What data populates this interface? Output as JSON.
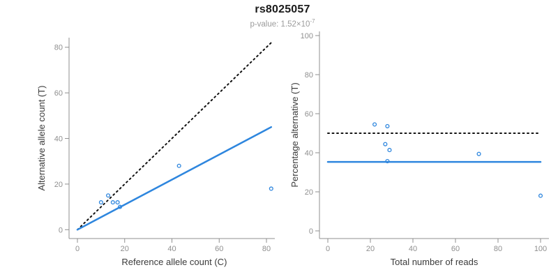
{
  "header": {
    "title": "rs8025057",
    "p_value_base": "p-value: 1.52×10",
    "p_value_exponent": "-7"
  },
  "colors": {
    "accent_blue": "#2E86DE",
    "dotted_black": "#111111",
    "axis_gray": "#8f8f8f",
    "tick_label_gray": "#8f8f8f",
    "axis_title_dark": "#3a3a3a",
    "subtitle_gray": "#9b9b9b"
  },
  "chart_data": [
    {
      "type": "scatter",
      "xlabel": "Reference allele count (C)",
      "ylabel": "Alternative allele count (T)",
      "xlim": [
        0,
        82
      ],
      "ylim": [
        0,
        82
      ],
      "xticks": [
        0,
        20,
        40,
        60,
        80
      ],
      "yticks": [
        0,
        20,
        40,
        60,
        80
      ],
      "grid": false,
      "legend": null,
      "points": [
        [
          10,
          12
        ],
        [
          13,
          15
        ],
        [
          15,
          12
        ],
        [
          17,
          12
        ],
        [
          18,
          10
        ],
        [
          43,
          28
        ],
        [
          82,
          18
        ]
      ],
      "lines": [
        {
          "name": "identity-dotted-line",
          "style": "dotted",
          "color": "#111111",
          "from": [
            0,
            0
          ],
          "to": [
            82,
            82
          ]
        },
        {
          "name": "fitted-proportion-line",
          "style": "solid",
          "color": "#2E86DE",
          "from": [
            0,
            0
          ],
          "to": [
            82,
            45
          ]
        }
      ]
    },
    {
      "type": "scatter",
      "xlabel": "Total number of reads",
      "ylabel": "Percentage alternative (T)",
      "xlim": [
        0,
        100
      ],
      "ylim": [
        0,
        100
      ],
      "xticks": [
        0,
        20,
        40,
        60,
        80,
        100
      ],
      "yticks": [
        0,
        20,
        40,
        60,
        80,
        100
      ],
      "grid": false,
      "legend": null,
      "points": [
        [
          22,
          54.5
        ],
        [
          28,
          53.6
        ],
        [
          27,
          44.4
        ],
        [
          29,
          41.4
        ],
        [
          28,
          35.7
        ],
        [
          71,
          39.4
        ],
        [
          100,
          18
        ]
      ],
      "lines": [
        {
          "name": "expected-50pct-dotted-line",
          "style": "dotted",
          "color": "#111111",
          "from": [
            0,
            50
          ],
          "to": [
            100,
            50
          ]
        },
        {
          "name": "fitted-percentage-line",
          "style": "solid",
          "color": "#2E86DE",
          "from": [
            0,
            35.3
          ],
          "to": [
            100,
            35.3
          ]
        }
      ]
    }
  ]
}
